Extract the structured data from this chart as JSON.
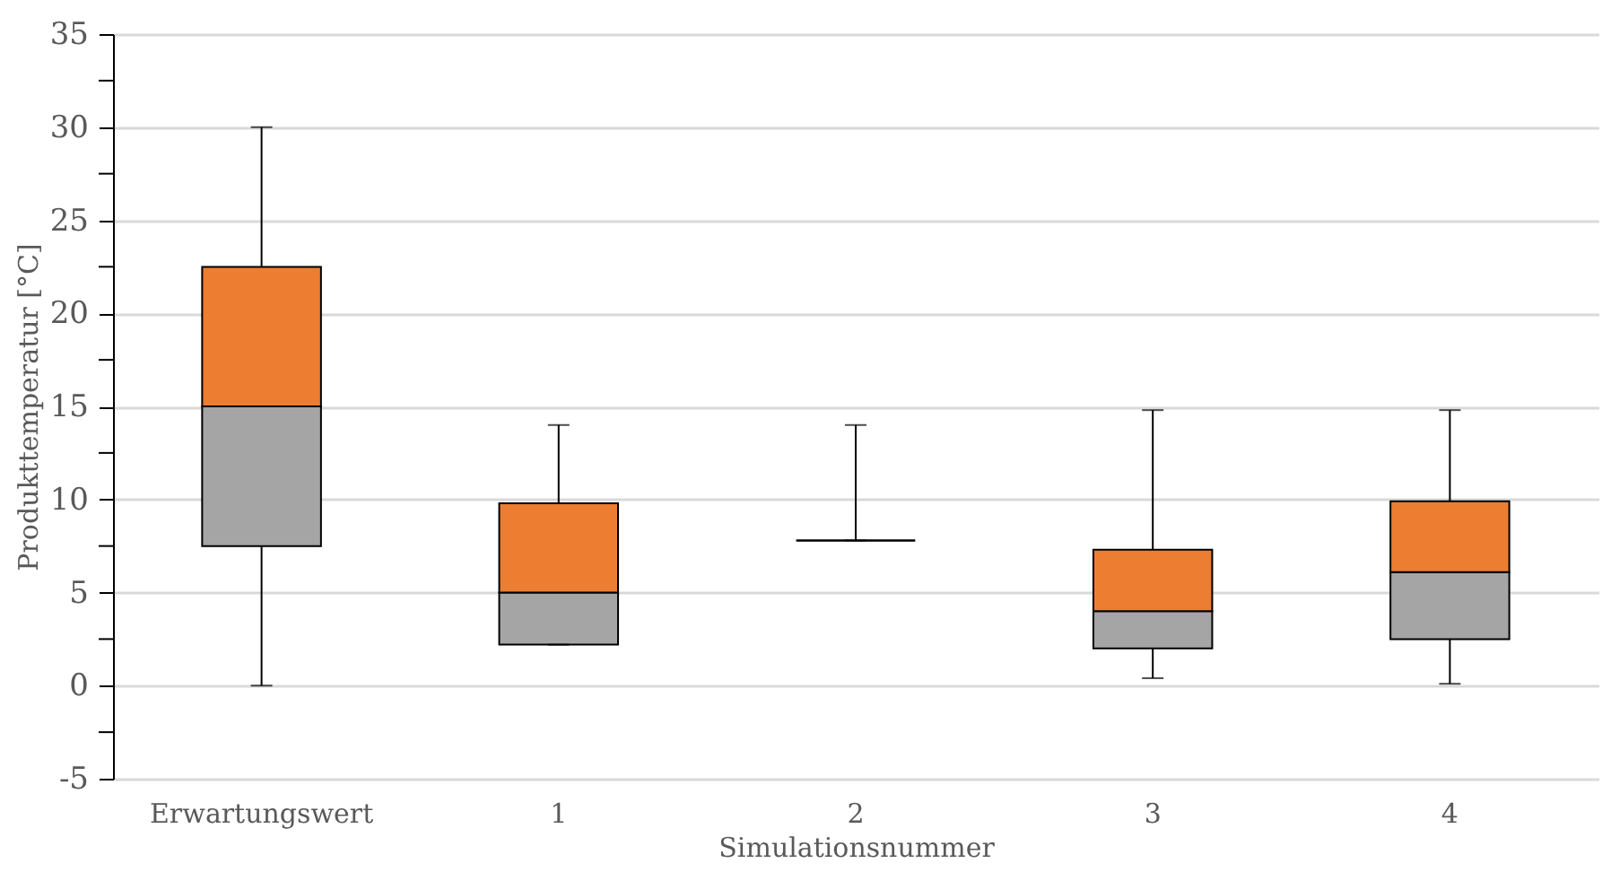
{
  "chart_data": {
    "type": "box",
    "xlabel": "Simulationsnummer",
    "ylabel": "Produkttemperatur [°C]",
    "categories": [
      "Erwartungswert",
      "1",
      "2",
      "3",
      "4"
    ],
    "series": [
      {
        "colors": [
          [
            "#a5a5a5",
            "#ed7d31"
          ],
          [
            "#a5a5a5",
            "#ed7d31"
          ],
          [
            "#a5a5a5",
            "#ed7d31"
          ],
          [
            "#a5a5a5",
            "#ed7d31"
          ],
          [
            "#a5a5a5",
            "#ed7d31"
          ]
        ],
        "boxes": [
          {
            "low": 0,
            "q1": 7.5,
            "median": 15,
            "q3": 22.5,
            "high": 30
          },
          {
            "low": 2.2,
            "q1": 2.2,
            "median": 5,
            "q3": 9.8,
            "high": 14
          },
          {
            "low": 7.8,
            "q1": 7.8,
            "median": 7.8,
            "q3": 7.8,
            "high": 14
          },
          {
            "low": 0.4,
            "q1": 2,
            "median": 4,
            "q3": 7.3,
            "high": 14.8
          },
          {
            "low": 0.1,
            "q1": 2.5,
            "median": 6.1,
            "q3": 9.9,
            "high": 14.8
          }
        ]
      }
    ],
    "ylim": [
      -5,
      35
    ],
    "yticks": [
      -5,
      {
        "value": -2.5,
        "label": null
      },
      0,
      {
        "value": 2.5,
        "label": null
      },
      5,
      {
        "value": 7.5,
        "label": null
      },
      10,
      {
        "value": 12.5,
        "label": null
      },
      15,
      {
        "value": 17.5,
        "label": null
      },
      20,
      {
        "value": 22.5,
        "label": null
      },
      25,
      {
        "value": 27.5,
        "label": null
      },
      30,
      {
        "value": 32.5,
        "label": null
      },
      35
    ],
    "grid": "y"
  }
}
